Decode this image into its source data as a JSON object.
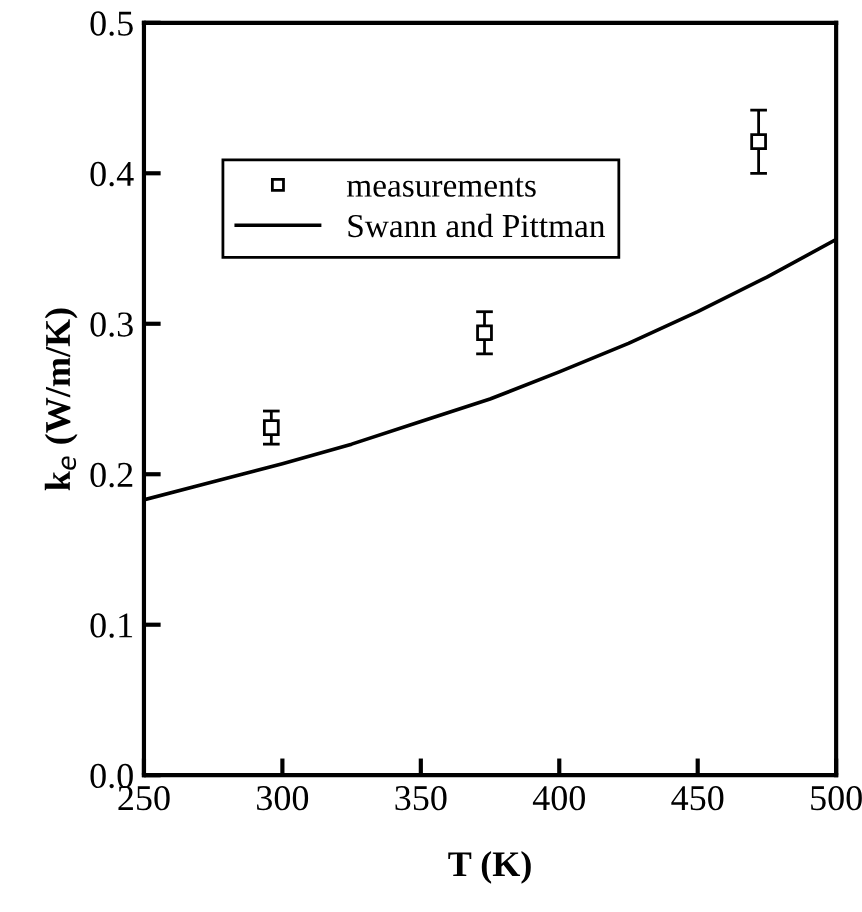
{
  "chart_data": {
    "type": "scatter",
    "xlabel": "T (K)",
    "ylabel": "k$_{e}$ (W/m/K)",
    "xlim": [
      250,
      500
    ],
    "xticks": [
      250,
      300,
      350,
      400,
      450,
      500
    ],
    "ylim": [
      0,
      0.5
    ],
    "yticks": [
      {
        "value": 0,
        "label": "0.0"
      },
      0.1,
      0.2,
      0.3,
      0.4,
      0.5
    ],
    "grid": false,
    "legend": "top left",
    "series": [
      {
        "name": "measurements",
        "color": "#000000",
        "marker": "square",
        "x": [
          296,
          373,
          472
        ],
        "values": [
          0.231,
          0.294,
          0.421
        ],
        "errors": [
          0.011,
          0.014,
          0.021
        ]
      },
      {
        "name": "Swann and Pittman",
        "type": "line",
        "color": "#000000",
        "marker": "none",
        "line_style": "solid",
        "x": [
          250,
          275,
          300,
          325,
          350,
          375,
          400,
          425,
          450,
          475,
          500
        ],
        "values": [
          0.183,
          0.195,
          0.207,
          0.22,
          0.235,
          0.25,
          0.268,
          0.287,
          0.308,
          0.331,
          0.356
        ]
      }
    ]
  }
}
